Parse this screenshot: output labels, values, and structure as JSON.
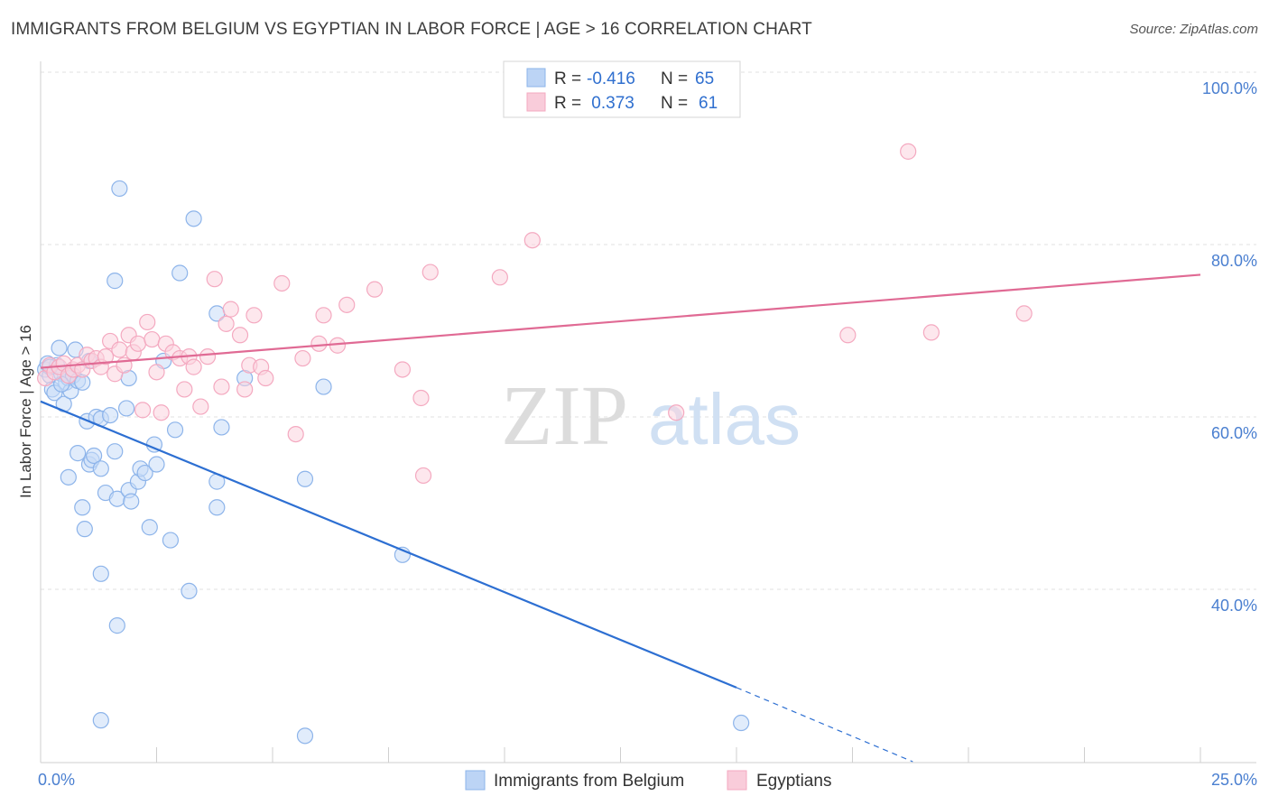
{
  "header": {
    "title": "IMMIGRANTS FROM BELGIUM VS EGYPTIAN IN LABOR FORCE | AGE > 16 CORRELATION CHART",
    "source": "Source: ZipAtlas.com"
  },
  "watermark": {
    "zip": "ZIP",
    "atlas": "atlas"
  },
  "legend": {
    "rows": [
      {
        "r_label": "R = ",
        "r_value": "-0.416",
        "n_label": "N = ",
        "n_value": "65",
        "color": "#8db4ea"
      },
      {
        "r_label": "R = ",
        "r_value": " 0.373",
        "n_label": "N = ",
        "n_value": "61",
        "color": "#f4a9c0"
      }
    ]
  },
  "chart_data": {
    "type": "scatter",
    "title": "IMMIGRANTS FROM BELGIUM VS EGYPTIAN IN LABOR FORCE | AGE > 16 CORRELATION CHART",
    "ylabel": "In Labor Force | Age > 16",
    "xlabel": "",
    "xlim": [
      0,
      25
    ],
    "ylim": [
      20,
      105
    ],
    "x_ticks": [
      {
        "value": 0,
        "label": "0.0%"
      },
      {
        "value": 25,
        "label": "25.0%"
      }
    ],
    "y_ticks": [
      {
        "value": 40,
        "label": "40.0%"
      },
      {
        "value": 60,
        "label": "60.0%"
      },
      {
        "value": 80,
        "label": "80.0%"
      },
      {
        "value": 100,
        "label": "100.0%"
      }
    ],
    "grid": true,
    "legend_position": "top-center",
    "series": [
      {
        "name": "Immigrants from Belgium",
        "color": "#8db4ea",
        "line_color": "#2d6fd2",
        "trend": {
          "x0": 0,
          "y0": 61.8,
          "x1": 15,
          "y1": 28.6,
          "dash_to_x": 18.8,
          "dash_to_y": 20
        },
        "points": [
          [
            0.1,
            65.5
          ],
          [
            0.15,
            66.2
          ],
          [
            0.2,
            64.8
          ],
          [
            0.25,
            63.2
          ],
          [
            0.3,
            62.8
          ],
          [
            0.35,
            66.0
          ],
          [
            0.4,
            68.0
          ],
          [
            0.45,
            65.0
          ],
          [
            0.5,
            61.5
          ],
          [
            0.55,
            64.0
          ],
          [
            0.6,
            64.5
          ],
          [
            0.65,
            63.0
          ],
          [
            0.7,
            64.8
          ],
          [
            0.75,
            67.8
          ],
          [
            0.8,
            64.2
          ],
          [
            0.9,
            64.0
          ],
          [
            1.0,
            59.5
          ],
          [
            1.05,
            66.5
          ],
          [
            1.2,
            60.0
          ],
          [
            1.3,
            59.8
          ],
          [
            1.5,
            60.2
          ],
          [
            1.6,
            75.8
          ],
          [
            1.7,
            86.5
          ],
          [
            1.85,
            61.0
          ],
          [
            1.9,
            64.5
          ],
          [
            0.6,
            53.0
          ],
          [
            0.8,
            55.8
          ],
          [
            0.9,
            49.5
          ],
          [
            0.95,
            47.0
          ],
          [
            1.05,
            54.5
          ],
          [
            1.1,
            55.0
          ],
          [
            1.15,
            55.5
          ],
          [
            1.3,
            54.0
          ],
          [
            1.3,
            41.8
          ],
          [
            1.4,
            51.2
          ],
          [
            1.6,
            56.0
          ],
          [
            1.65,
            50.5
          ],
          [
            1.65,
            35.8
          ],
          [
            1.9,
            51.5
          ],
          [
            1.95,
            50.2
          ],
          [
            2.1,
            52.5
          ],
          [
            2.15,
            54.0
          ],
          [
            2.25,
            53.5
          ],
          [
            2.35,
            47.2
          ],
          [
            2.45,
            56.8
          ],
          [
            2.5,
            54.5
          ],
          [
            2.65,
            66.5
          ],
          [
            2.8,
            45.7
          ],
          [
            2.9,
            58.5
          ],
          [
            3.0,
            76.7
          ],
          [
            3.2,
            39.8
          ],
          [
            3.3,
            83.0
          ],
          [
            3.8,
            49.5
          ],
          [
            3.8,
            52.5
          ],
          [
            3.8,
            72.0
          ],
          [
            3.9,
            58.8
          ],
          [
            4.4,
            64.5
          ],
          [
            1.3,
            24.8
          ],
          [
            5.7,
            23.0
          ],
          [
            5.7,
            52.8
          ],
          [
            6.1,
            63.5
          ],
          [
            7.8,
            44.0
          ],
          [
            15.1,
            24.5
          ],
          [
            0.45,
            63.8
          ],
          [
            0.2,
            65.8
          ]
        ]
      },
      {
        "name": "Egyptians",
        "color": "#f4a9c0",
        "line_color": "#e06a94",
        "trend": {
          "x0": 0,
          "y0": 65.7,
          "x1": 25,
          "y1": 76.5
        },
        "points": [
          [
            0.1,
            64.5
          ],
          [
            0.2,
            66.0
          ],
          [
            0.3,
            65.2
          ],
          [
            0.4,
            65.8
          ],
          [
            0.5,
            66.2
          ],
          [
            0.6,
            64.8
          ],
          [
            0.7,
            65.5
          ],
          [
            0.8,
            66.0
          ],
          [
            0.9,
            65.5
          ],
          [
            1.0,
            67.2
          ],
          [
            1.1,
            66.5
          ],
          [
            1.2,
            66.8
          ],
          [
            1.3,
            65.8
          ],
          [
            1.4,
            67.0
          ],
          [
            1.5,
            68.8
          ],
          [
            1.6,
            65.0
          ],
          [
            1.7,
            67.8
          ],
          [
            1.8,
            66.0
          ],
          [
            1.9,
            69.5
          ],
          [
            2.0,
            67.5
          ],
          [
            2.1,
            68.5
          ],
          [
            2.2,
            60.8
          ],
          [
            2.3,
            71.0
          ],
          [
            2.4,
            69.0
          ],
          [
            2.5,
            65.2
          ],
          [
            2.6,
            60.5
          ],
          [
            2.7,
            68.5
          ],
          [
            2.85,
            67.5
          ],
          [
            3.0,
            66.8
          ],
          [
            3.1,
            63.2
          ],
          [
            3.2,
            67.0
          ],
          [
            3.3,
            65.8
          ],
          [
            3.45,
            61.2
          ],
          [
            3.6,
            67.0
          ],
          [
            3.75,
            76.0
          ],
          [
            3.9,
            63.5
          ],
          [
            4.0,
            70.8
          ],
          [
            4.1,
            72.5
          ],
          [
            4.3,
            69.5
          ],
          [
            4.4,
            63.2
          ],
          [
            4.5,
            66.0
          ],
          [
            4.6,
            71.8
          ],
          [
            4.75,
            65.8
          ],
          [
            4.85,
            64.5
          ],
          [
            5.2,
            75.5
          ],
          [
            5.5,
            58.0
          ],
          [
            5.65,
            66.8
          ],
          [
            6.0,
            68.5
          ],
          [
            6.1,
            71.8
          ],
          [
            6.4,
            68.3
          ],
          [
            6.6,
            73.0
          ],
          [
            7.2,
            74.8
          ],
          [
            7.8,
            65.5
          ],
          [
            8.2,
            62.2
          ],
          [
            8.25,
            53.2
          ],
          [
            8.4,
            76.8
          ],
          [
            9.9,
            76.2
          ],
          [
            10.6,
            80.5
          ],
          [
            13.7,
            60.5
          ],
          [
            17.4,
            69.5
          ],
          [
            18.7,
            90.8
          ]
        ]
      }
    ]
  },
  "extra_points": {
    "egypt_more": [
      [
        19.2,
        69.8
      ],
      [
        21.2,
        72.0
      ]
    ]
  }
}
